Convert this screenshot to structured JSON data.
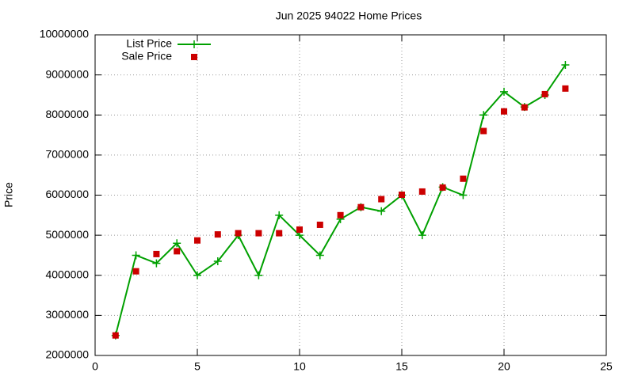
{
  "chart_data": {
    "type": "line",
    "title": "Jun 2025 94022 Home Prices",
    "y_label": "Price",
    "x": [
      1,
      2,
      3,
      4,
      5,
      6,
      7,
      8,
      9,
      10,
      11,
      12,
      13,
      14,
      15,
      16,
      17,
      18,
      19,
      20,
      21,
      22,
      23
    ],
    "series": [
      {
        "name": "List Price",
        "color": "#00a000",
        "style": "linespoints",
        "values": [
          2500000,
          4500000,
          4300000,
          4800000,
          4000000,
          4350000,
          5000000,
          4000000,
          5500000,
          5000000,
          4500000,
          5400000,
          5700000,
          5600000,
          6000000,
          5000000,
          6200000,
          6000000,
          8000000,
          8580000,
          8200000,
          8500000,
          9250000
        ]
      },
      {
        "name": "Sale Price",
        "color": "#cc0000",
        "style": "points",
        "values": [
          2500000,
          4100000,
          4530000,
          4600000,
          4870000,
          5020000,
          5050000,
          5050000,
          5050000,
          5140000,
          5260000,
          5500000,
          5700000,
          5900000,
          6010000,
          6090000,
          6190000,
          6410000,
          7600000,
          8090000,
          8190000,
          8520000,
          8660000
        ]
      }
    ],
    "xlim": [
      0,
      25
    ],
    "xticks": [
      0,
      5,
      10,
      15,
      20,
      25
    ],
    "ylim": [
      2000000,
      10000000
    ],
    "yticks": [
      2000000,
      3000000,
      4000000,
      5000000,
      6000000,
      7000000,
      8000000,
      9000000,
      10000000
    ],
    "grid": true,
    "legend": "top-left"
  }
}
